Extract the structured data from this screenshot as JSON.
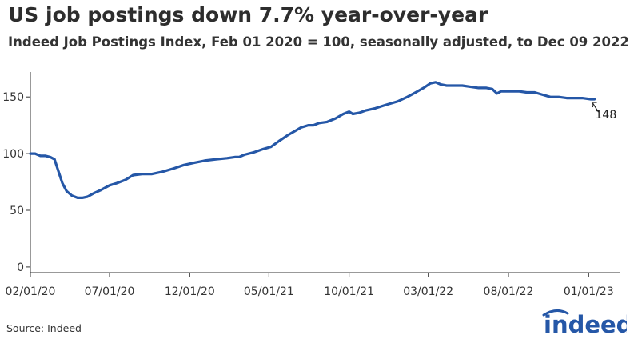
{
  "header": {
    "title": "US job postings down 7.7% year-over-year",
    "subtitle": "Indeed Job Postings Index, Feb 01 2020 = 100, seasonally adjusted, to Dec 09 2022"
  },
  "footer": {
    "source": "Source: Indeed"
  },
  "logo": {
    "text": "indeed",
    "color": "#2557a7"
  },
  "colors": {
    "line": "#2557a7",
    "axis": "#333333",
    "gridline": "#cccccc"
  },
  "chart_data": {
    "type": "line",
    "title": "US job postings down 7.7% year-over-year",
    "subtitle": "Indeed Job Postings Index, Feb 01 2020 = 100, seasonally adjusted, to Dec 09 2022",
    "xlabel": "",
    "ylabel": "",
    "xlim": [
      "2020-02-01",
      "2023-03-01"
    ],
    "ylim": [
      -5,
      172
    ],
    "yticks": [
      0,
      50,
      100,
      150
    ],
    "xticks": [
      {
        "date": "2020-02-01",
        "label": "02/01/20"
      },
      {
        "date": "2020-07-01",
        "label": "07/01/20"
      },
      {
        "date": "2020-12-01",
        "label": "12/01/20"
      },
      {
        "date": "2021-05-01",
        "label": "05/01/21"
      },
      {
        "date": "2021-10-01",
        "label": "10/01/21"
      },
      {
        "date": "2022-03-01",
        "label": "03/01/22"
      },
      {
        "date": "2022-08-01",
        "label": "08/01/22"
      },
      {
        "date": "2023-01-01",
        "label": "01/01/23"
      }
    ],
    "grid": false,
    "series": [
      {
        "points": [
          [
            "2020-02-01",
            100
          ],
          [
            "2020-02-10",
            100
          ],
          [
            "2020-02-20",
            98
          ],
          [
            "2020-03-01",
            98
          ],
          [
            "2020-03-10",
            97
          ],
          [
            "2020-03-18",
            95
          ],
          [
            "2020-03-25",
            85
          ],
          [
            "2020-04-02",
            74
          ],
          [
            "2020-04-10",
            67
          ],
          [
            "2020-04-20",
            63
          ],
          [
            "2020-05-01",
            61
          ],
          [
            "2020-05-10",
            61
          ],
          [
            "2020-05-20",
            62
          ],
          [
            "2020-06-01",
            65
          ],
          [
            "2020-06-15",
            68
          ],
          [
            "2020-07-01",
            72
          ],
          [
            "2020-07-15",
            74
          ],
          [
            "2020-08-01",
            77
          ],
          [
            "2020-08-15",
            81
          ],
          [
            "2020-09-01",
            82
          ],
          [
            "2020-09-20",
            82
          ],
          [
            "2020-10-10",
            84
          ],
          [
            "2020-11-01",
            87
          ],
          [
            "2020-11-20",
            90
          ],
          [
            "2020-12-10",
            92
          ],
          [
            "2021-01-01",
            94
          ],
          [
            "2021-01-20",
            95
          ],
          [
            "2021-02-10",
            96
          ],
          [
            "2021-02-25",
            97
          ],
          [
            "2021-03-05",
            97
          ],
          [
            "2021-03-15",
            99
          ],
          [
            "2021-04-01",
            101
          ],
          [
            "2021-04-20",
            104
          ],
          [
            "2021-05-05",
            106
          ],
          [
            "2021-05-20",
            111
          ],
          [
            "2021-06-05",
            116
          ],
          [
            "2021-06-20",
            120
          ],
          [
            "2021-07-01",
            123
          ],
          [
            "2021-07-15",
            125
          ],
          [
            "2021-07-25",
            125
          ],
          [
            "2021-08-05",
            127
          ],
          [
            "2021-08-20",
            128
          ],
          [
            "2021-09-05",
            131
          ],
          [
            "2021-09-20",
            135
          ],
          [
            "2021-10-01",
            137
          ],
          [
            "2021-10-08",
            135
          ],
          [
            "2021-10-20",
            136
          ],
          [
            "2021-11-01",
            138
          ],
          [
            "2021-11-20",
            140
          ],
          [
            "2021-12-10",
            143
          ],
          [
            "2022-01-01",
            146
          ],
          [
            "2022-01-20",
            150
          ],
          [
            "2022-02-05",
            154
          ],
          [
            "2022-02-20",
            158
          ],
          [
            "2022-03-05",
            162
          ],
          [
            "2022-03-15",
            163
          ],
          [
            "2022-03-25",
            161
          ],
          [
            "2022-04-05",
            160
          ],
          [
            "2022-04-20",
            160
          ],
          [
            "2022-05-05",
            160
          ],
          [
            "2022-05-20",
            159
          ],
          [
            "2022-06-05",
            158
          ],
          [
            "2022-06-20",
            158
          ],
          [
            "2022-07-01",
            157
          ],
          [
            "2022-07-10",
            153
          ],
          [
            "2022-07-18",
            155
          ],
          [
            "2022-08-01",
            155
          ],
          [
            "2022-08-20",
            155
          ],
          [
            "2022-09-05",
            154
          ],
          [
            "2022-09-20",
            154
          ],
          [
            "2022-10-05",
            152
          ],
          [
            "2022-10-20",
            150
          ],
          [
            "2022-11-05",
            150
          ],
          [
            "2022-11-20",
            149
          ],
          [
            "2022-12-05",
            149
          ],
          [
            "2022-12-20",
            149
          ],
          [
            "2023-01-05",
            148
          ],
          [
            "2023-01-12",
            148
          ]
        ]
      }
    ],
    "annotations": [
      {
        "date": "2023-01-12",
        "value": 148,
        "label": "148"
      }
    ]
  }
}
